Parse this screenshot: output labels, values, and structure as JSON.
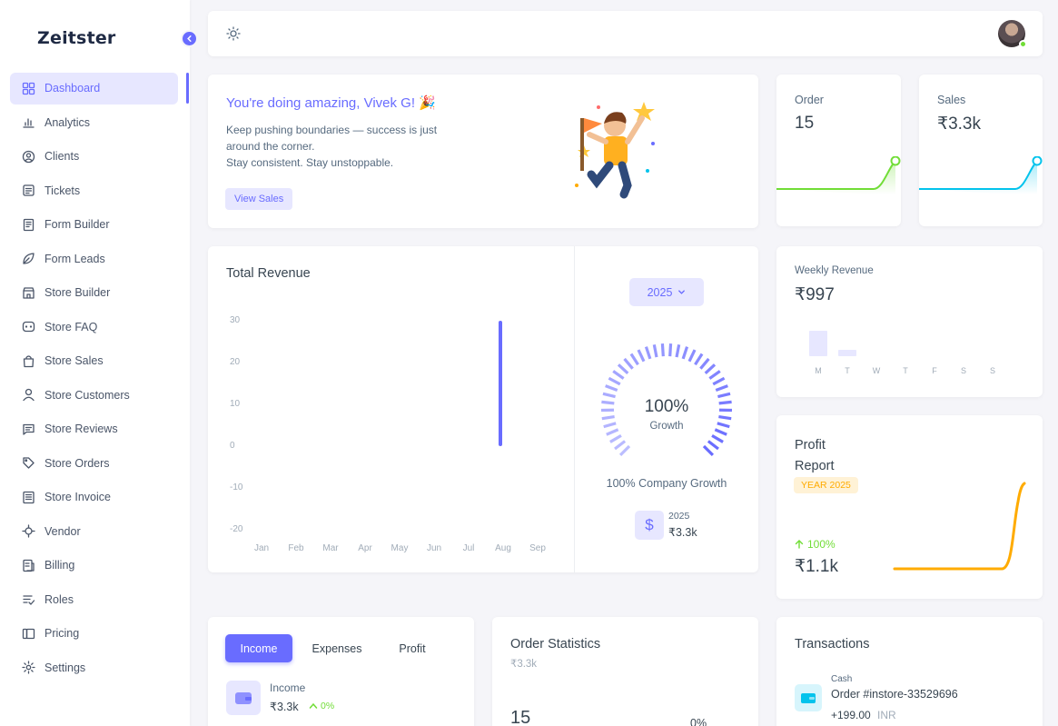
{
  "brand": {
    "name": "Zeitster"
  },
  "sidebar": {
    "items": [
      {
        "label": "Dashboard",
        "icon": "dashboard-icon",
        "active": true
      },
      {
        "label": "Analytics",
        "icon": "chart-icon"
      },
      {
        "label": "Clients",
        "icon": "user-circle-icon"
      },
      {
        "label": "Tickets",
        "icon": "ticket-icon"
      },
      {
        "label": "Form Builder",
        "icon": "form-icon"
      },
      {
        "label": "Form Leads",
        "icon": "leaf-icon"
      },
      {
        "label": "Store Builder",
        "icon": "store-icon"
      },
      {
        "label": "Store FAQ",
        "icon": "faq-icon"
      },
      {
        "label": "Store Sales",
        "icon": "bag-icon"
      },
      {
        "label": "Store Customers",
        "icon": "user-icon"
      },
      {
        "label": "Store Reviews",
        "icon": "message-icon"
      },
      {
        "label": "Store Orders",
        "icon": "tag-icon"
      },
      {
        "label": "Store Invoice",
        "icon": "invoice-icon"
      },
      {
        "label": "Vendor",
        "icon": "vendor-icon"
      },
      {
        "label": "Billing",
        "icon": "billing-icon"
      },
      {
        "label": "Roles",
        "icon": "roles-icon"
      },
      {
        "label": "Pricing",
        "icon": "pricing-icon"
      },
      {
        "label": "Settings",
        "icon": "settings-icon"
      }
    ]
  },
  "topbar": {
    "theme_icon": "sun-icon",
    "avatar_status": "online"
  },
  "welcome": {
    "title": "You're doing amazing, Vivek G! 🎉",
    "line1": "Keep pushing boundaries — success is just around the corner.",
    "line2": "Stay consistent. Stay unstoppable.",
    "button": "View Sales"
  },
  "order_card": {
    "label": "Order",
    "value": "15",
    "color": "#71dd37",
    "trend": [
      0,
      0,
      0,
      0,
      0,
      0,
      0,
      1
    ]
  },
  "sales_card": {
    "label": "Sales",
    "value": "₹3.3k",
    "color": "#03c3ec",
    "trend": [
      0,
      0,
      0,
      0,
      0,
      0,
      0,
      1
    ]
  },
  "total_revenue": {
    "title": "Total Revenue",
    "year_button": "2025",
    "growth_percent": "100%",
    "growth_label": "Growth",
    "growth_value": 100,
    "company_growth": "100% Company Growth",
    "year_label": "2025",
    "year_amount": "₹3.3k"
  },
  "chart_data": {
    "type": "bar",
    "title": "Total Revenue",
    "categories": [
      "Jan",
      "Feb",
      "Mar",
      "Apr",
      "May",
      "Jun",
      "Jul",
      "Aug",
      "Sep"
    ],
    "values": [
      0,
      0,
      0,
      0,
      0,
      0,
      0,
      30,
      0
    ],
    "yticks": [
      "30",
      "20",
      "10",
      "0",
      "-10",
      "-20"
    ],
    "ylim": [
      -20,
      30
    ],
    "color": "#696cff"
  },
  "weekly_revenue": {
    "label": "Weekly Revenue",
    "value": "₹997",
    "days": [
      "M",
      "T",
      "W",
      "T",
      "F",
      "S",
      "S"
    ],
    "values": [
      1,
      0.25,
      0,
      0,
      0,
      0,
      0
    ],
    "color": "#e7e7ff"
  },
  "profit_report": {
    "title_line1": "Profit",
    "title_line2": "Report",
    "badge": "YEAR 2025",
    "change": "100%",
    "value": "₹1.1k",
    "color": "#ffab00"
  },
  "income_tabs": {
    "tabs": [
      "Income",
      "Expenses",
      "Profit"
    ],
    "active": "Income",
    "item_label": "Income",
    "item_value": "₹3.3k",
    "item_change": "0%"
  },
  "order_statistics": {
    "title": "Order Statistics",
    "subtitle": "₹3.3k",
    "count": "15",
    "percent": "0%"
  },
  "transactions": {
    "title": "Transactions",
    "items": [
      {
        "type": "Cash",
        "name": "Order #instore-33529696",
        "amount": "+199.00",
        "currency": "INR"
      }
    ]
  }
}
